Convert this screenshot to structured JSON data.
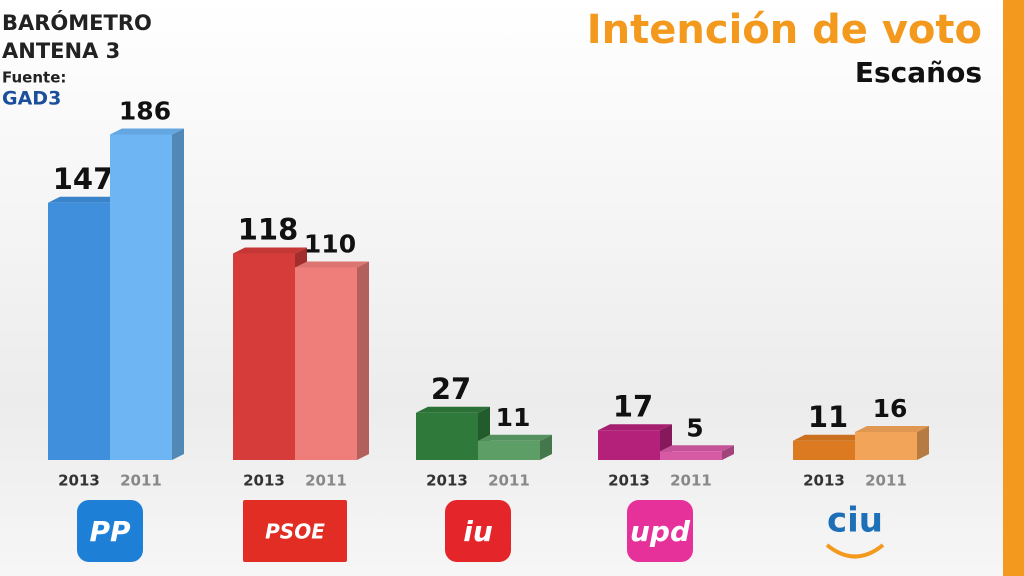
{
  "header": {
    "line1": "BARÓMETRO",
    "line2": "ANTENA 3",
    "source_label": "Fuente:",
    "source": "GAD3"
  },
  "chart_data": {
    "type": "bar",
    "title": "Intención de voto",
    "subtitle": "Escaños",
    "categories": [
      "PP",
      "PSOE",
      "iu",
      "upd",
      "ciu"
    ],
    "series": [
      {
        "name": "2013",
        "color": [
          "#3f8fdc",
          "#d63c3a",
          "#2f7a3a",
          "#b3217a",
          "#dc7a22"
        ],
        "values": [
          147,
          118,
          27,
          17,
          11
        ]
      },
      {
        "name": "2011",
        "color": [
          "#6db5f3",
          "#ef7e7b",
          "#5c9e66",
          "#d65aa4",
          "#f2a458"
        ],
        "values": [
          186,
          110,
          11,
          5,
          16
        ]
      }
    ],
    "logo_colors": [
      "#1e7fd6",
      "#e12d24",
      "#e4262b",
      "#e6319a",
      "#1d6fb8"
    ],
    "ylim": [
      0,
      200
    ]
  }
}
